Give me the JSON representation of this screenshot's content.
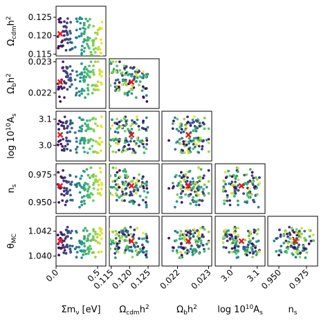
{
  "chart_data": {
    "type": "scatter",
    "kind": "corner-plot",
    "colormap": [
      "#440154",
      "#3b528b",
      "#21918c",
      "#5ec962",
      "#fde725"
    ],
    "marker_color": "#e41a1c",
    "parameters": [
      {
        "key": "mnu",
        "label": "Σm_ν [eV]",
        "range": [
          0.0,
          0.6
        ],
        "ticks": [
          "0.0",
          "0.5"
        ],
        "tick_values": [
          0.0,
          0.5
        ],
        "best": 0.05
      },
      {
        "key": "omch2",
        "label": "Ω_cdm h²",
        "range": [
          0.1145,
          0.128
        ],
        "ticks": [
          "0.115",
          "0.120",
          "0.125"
        ],
        "tick_values": [
          0.115,
          0.12,
          0.125
        ],
        "best": 0.1205
      },
      {
        "key": "ombh2",
        "label": "Ω_b h²",
        "range": [
          0.0215,
          0.0231
        ],
        "ticks": [
          "0.022",
          "0.023"
        ],
        "tick_values": [
          0.022,
          0.023
        ],
        "best": 0.02235
      },
      {
        "key": "logA",
        "label": "log 10¹⁰ A_s",
        "range": [
          2.94,
          3.13
        ],
        "ticks": [
          "3.0",
          "3.1"
        ],
        "tick_values": [
          3.0,
          3.1
        ],
        "best": 3.04
      },
      {
        "key": "ns",
        "label": "n_s",
        "range": [
          0.94,
          0.985
        ],
        "ticks": [
          "0.950",
          "0.975"
        ],
        "tick_values": [
          0.95,
          0.975
        ],
        "best": 0.965
      },
      {
        "key": "theta",
        "label": "θ_MC",
        "range": [
          1.0392,
          1.0432
        ],
        "ticks": [
          "1.040",
          "1.042"
        ],
        "tick_values": [
          1.04,
          1.042
        ],
        "best": 1.0412
      }
    ],
    "row_params": [
      "omch2",
      "ombh2",
      "logA",
      "ns",
      "theta"
    ],
    "col_params": [
      "mnu",
      "omch2",
      "ombh2",
      "logA",
      "ns"
    ],
    "grid": false,
    "n_points_per_panel": 110
  },
  "labels": {
    "row": {
      "omch2": {
        "main": "Ω",
        "sub": "cdm",
        "tail": "h",
        "sup": "2"
      },
      "ombh2": {
        "main": "Ω",
        "sub": "b",
        "tail": "h",
        "sup": "2"
      },
      "logA": {
        "main": "log 10",
        "sup": "10",
        "tail": "A",
        "sub": "s"
      },
      "ns": {
        "main": "n",
        "sub": "s"
      },
      "theta": {
        "main": "θ",
        "sub": "MC"
      }
    },
    "col": {
      "mnu": {
        "main": "Σm",
        "sub": "ν",
        "tail": " [eV]"
      },
      "omch2": {
        "main": "Ω",
        "sub": "cdm",
        "tail": "h",
        "sup": "2"
      },
      "ombh2": {
        "main": "Ω",
        "sub": "b",
        "tail": "h",
        "sup": "2"
      },
      "logA": {
        "main": "log 10",
        "sup": "10",
        "tail": "A",
        "sub": "s"
      },
      "ns": {
        "main": "n",
        "sub": "s"
      }
    }
  }
}
